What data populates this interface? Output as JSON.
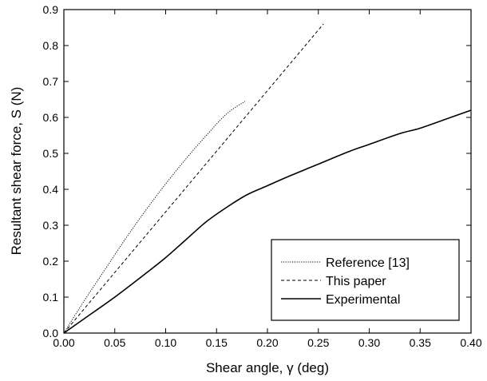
{
  "chart_data": {
    "type": "line",
    "xlabel": "Shear angle,  γ (deg)",
    "ylabel": "Resultant shear force, S (N)",
    "xlim": [
      0,
      0.4
    ],
    "ylim": [
      0,
      0.9
    ],
    "xticks": [
      "0.00",
      "0.05",
      "0.10",
      "0.15",
      "0.20",
      "0.25",
      "0.30",
      "0.35",
      "0.40"
    ],
    "yticks": [
      "0.0",
      "0.1",
      "0.2",
      "0.3",
      "0.4",
      "0.5",
      "0.6",
      "0.7",
      "0.8",
      "0.9"
    ],
    "grid": false,
    "legend_position": "bottom-right",
    "series": [
      {
        "name": "Reference [13]",
        "style": "dotted",
        "x": [
          0,
          0.02,
          0.04,
          0.06,
          0.08,
          0.1,
          0.12,
          0.14,
          0.16,
          0.178
        ],
        "y": [
          0,
          0.09,
          0.175,
          0.26,
          0.34,
          0.415,
          0.485,
          0.55,
          0.61,
          0.645
        ]
      },
      {
        "name": "This paper",
        "style": "dashed",
        "x": [
          0,
          0.255
        ],
        "y": [
          0,
          0.86
        ]
      },
      {
        "name": "Experimental",
        "style": "solid",
        "x": [
          0,
          0.02,
          0.05,
          0.08,
          0.1,
          0.12,
          0.14,
          0.16,
          0.18,
          0.2,
          0.22,
          0.25,
          0.28,
          0.3,
          0.33,
          0.35,
          0.38,
          0.4
        ],
        "y": [
          0,
          0.04,
          0.1,
          0.165,
          0.21,
          0.26,
          0.31,
          0.35,
          0.385,
          0.41,
          0.435,
          0.47,
          0.505,
          0.525,
          0.555,
          0.57,
          0.6,
          0.62
        ]
      }
    ]
  }
}
